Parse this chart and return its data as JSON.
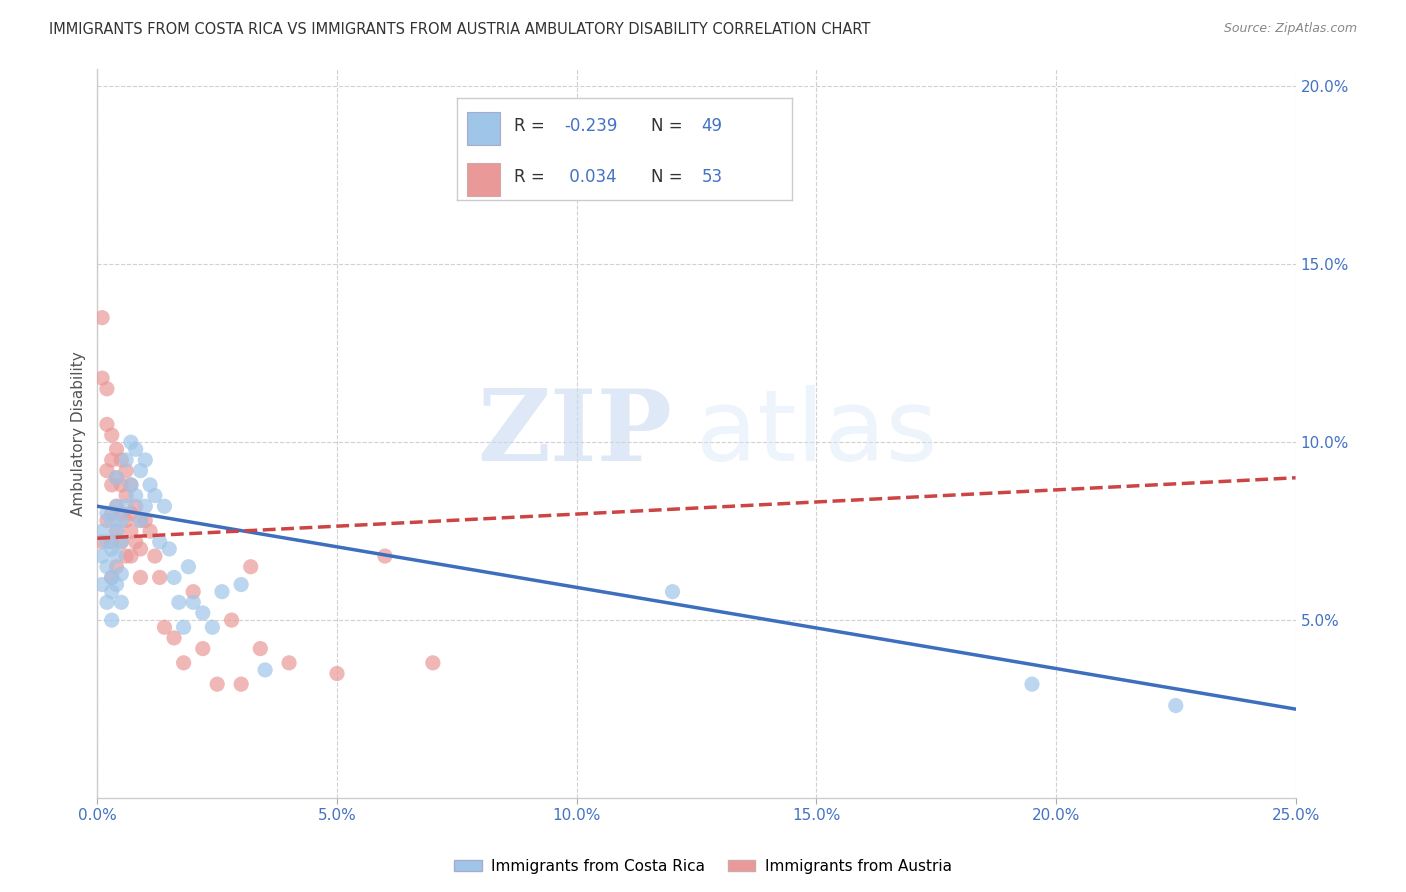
{
  "title": "IMMIGRANTS FROM COSTA RICA VS IMMIGRANTS FROM AUSTRIA AMBULATORY DISABILITY CORRELATION CHART",
  "source": "Source: ZipAtlas.com",
  "ylabel": "Ambulatory Disability",
  "xlim": [
    0.0,
    0.25
  ],
  "ylim": [
    0.0,
    0.205
  ],
  "xticks": [
    0.0,
    0.05,
    0.1,
    0.15,
    0.2,
    0.25
  ],
  "yticks": [
    0.05,
    0.1,
    0.15,
    0.2
  ],
  "xtick_labels": [
    "0.0%",
    "5.0%",
    "10.0%",
    "15.0%",
    "20.0%",
    "25.0%"
  ],
  "ytick_labels": [
    "5.0%",
    "10.0%",
    "15.0%",
    "20.0%"
  ],
  "background_color": "#ffffff",
  "watermark_zip": "ZIP",
  "watermark_atlas": "atlas",
  "legend_label_blue": "Immigrants from Costa Rica",
  "legend_label_pink": "Immigrants from Austria",
  "R_blue": -0.239,
  "N_blue": 49,
  "R_pink": 0.034,
  "N_pink": 53,
  "color_blue": "#9fc5e8",
  "color_pink": "#ea9999",
  "trendline_color_blue": "#3d6fbe",
  "trendline_color_pink": "#cc4444",
  "blue_x": [
    0.001,
    0.001,
    0.001,
    0.002,
    0.002,
    0.002,
    0.002,
    0.003,
    0.003,
    0.003,
    0.003,
    0.003,
    0.004,
    0.004,
    0.004,
    0.004,
    0.004,
    0.005,
    0.005,
    0.005,
    0.005,
    0.006,
    0.006,
    0.007,
    0.007,
    0.008,
    0.008,
    0.009,
    0.009,
    0.01,
    0.01,
    0.011,
    0.012,
    0.013,
    0.014,
    0.015,
    0.016,
    0.017,
    0.018,
    0.019,
    0.02,
    0.022,
    0.024,
    0.026,
    0.03,
    0.035,
    0.12,
    0.195,
    0.225
  ],
  "blue_y": [
    0.075,
    0.068,
    0.06,
    0.08,
    0.072,
    0.065,
    0.055,
    0.078,
    0.07,
    0.062,
    0.058,
    0.05,
    0.09,
    0.082,
    0.075,
    0.068,
    0.06,
    0.078,
    0.072,
    0.063,
    0.055,
    0.095,
    0.082,
    0.1,
    0.088,
    0.098,
    0.085,
    0.092,
    0.078,
    0.095,
    0.082,
    0.088,
    0.085,
    0.072,
    0.082,
    0.07,
    0.062,
    0.055,
    0.048,
    0.065,
    0.055,
    0.052,
    0.048,
    0.058,
    0.06,
    0.036,
    0.058,
    0.032,
    0.026
  ],
  "pink_x": [
    0.001,
    0.001,
    0.001,
    0.002,
    0.002,
    0.002,
    0.002,
    0.003,
    0.003,
    0.003,
    0.003,
    0.003,
    0.003,
    0.004,
    0.004,
    0.004,
    0.004,
    0.004,
    0.005,
    0.005,
    0.005,
    0.005,
    0.006,
    0.006,
    0.006,
    0.006,
    0.007,
    0.007,
    0.007,
    0.007,
    0.008,
    0.008,
    0.009,
    0.009,
    0.009,
    0.01,
    0.011,
    0.012,
    0.013,
    0.014,
    0.016,
    0.018,
    0.02,
    0.022,
    0.025,
    0.028,
    0.03,
    0.032,
    0.034,
    0.04,
    0.05,
    0.06,
    0.07
  ],
  "pink_y": [
    0.135,
    0.118,
    0.072,
    0.115,
    0.105,
    0.092,
    0.078,
    0.102,
    0.095,
    0.088,
    0.08,
    0.072,
    0.062,
    0.098,
    0.09,
    0.082,
    0.075,
    0.065,
    0.095,
    0.088,
    0.08,
    0.072,
    0.092,
    0.085,
    0.078,
    0.068,
    0.088,
    0.08,
    0.075,
    0.068,
    0.082,
    0.072,
    0.078,
    0.07,
    0.062,
    0.078,
    0.075,
    0.068,
    0.062,
    0.048,
    0.045,
    0.038,
    0.058,
    0.042,
    0.032,
    0.05,
    0.032,
    0.065,
    0.042,
    0.038,
    0.035,
    0.068,
    0.038
  ],
  "blue_trend_y_start": 0.082,
  "blue_trend_y_end": 0.025,
  "pink_trend_y_start": 0.073,
  "pink_trend_y_end": 0.09
}
